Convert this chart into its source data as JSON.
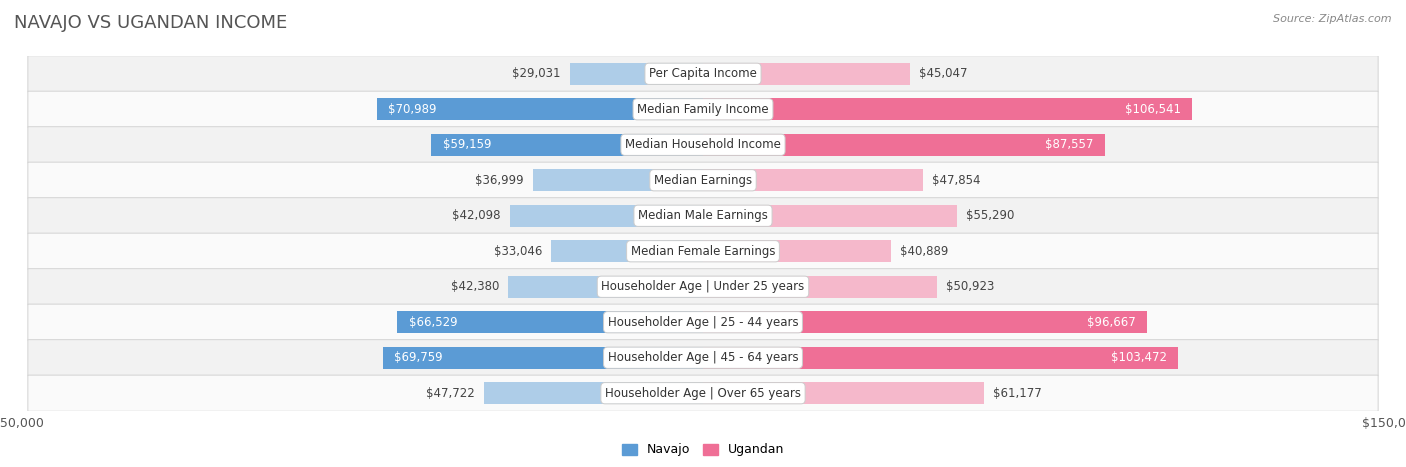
{
  "title": "NAVAJO VS UGANDAN INCOME",
  "source": "Source: ZipAtlas.com",
  "categories": [
    "Per Capita Income",
    "Median Family Income",
    "Median Household Income",
    "Median Earnings",
    "Median Male Earnings",
    "Median Female Earnings",
    "Householder Age | Under 25 years",
    "Householder Age | 25 - 44 years",
    "Householder Age | 45 - 64 years",
    "Householder Age | Over 65 years"
  ],
  "navajo_values": [
    29031,
    70989,
    59159,
    36999,
    42098,
    33046,
    42380,
    66529,
    69759,
    47722
  ],
  "ugandan_values": [
    45047,
    106541,
    87557,
    47854,
    55290,
    40889,
    50923,
    96667,
    103472,
    61177
  ],
  "navajo_labels": [
    "$29,031",
    "$70,989",
    "$59,159",
    "$36,999",
    "$42,098",
    "$33,046",
    "$42,380",
    "$66,529",
    "$69,759",
    "$47,722"
  ],
  "ugandan_labels": [
    "$45,047",
    "$106,541",
    "$87,557",
    "$47,854",
    "$55,290",
    "$40,889",
    "$50,923",
    "$96,667",
    "$103,472",
    "$61,177"
  ],
  "navajo_color_light": "#aecde8",
  "navajo_color_dark": "#5b9bd5",
  "ugandan_color_light": "#f5b8cb",
  "ugandan_color_dark": "#ef6f96",
  "navajo_dark_threshold": 55000,
  "ugandan_dark_threshold": 85000,
  "max_value": 150000,
  "background_color": "#ffffff",
  "row_bg_even": "#f2f2f2",
  "row_bg_odd": "#fafafa",
  "title_fontsize": 13,
  "label_fontsize": 8.5,
  "cat_fontsize": 8.5,
  "legend_navajo": "Navajo",
  "legend_ugandan": "Ugandan",
  "legend_fontsize": 9
}
